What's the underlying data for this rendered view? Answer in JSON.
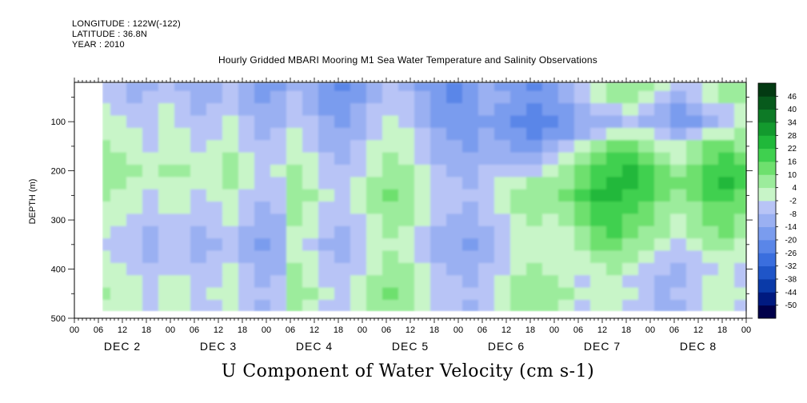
{
  "header": {
    "longitude": "LONGITUDE : 122W(-122)",
    "latitude": "LATITUDE : 36.8N",
    "year": "YEAR : 2010"
  },
  "plot_title": "Hourly Gridded MBARI Mooring M1 Sea Water Temperature and Salinity Observations",
  "bottom_title": "U Component of Water Velocity (cm s-1)",
  "chart_data": {
    "type": "heatmap",
    "title": "Hourly Gridded MBARI Mooring M1 Sea Water Temperature and Salinity Observations",
    "xlabel": "",
    "ylabel": "DEPTH (m)",
    "x_hour_ticks": [
      "00",
      "06",
      "12",
      "18",
      "00",
      "06",
      "12",
      "18",
      "00",
      "06",
      "12",
      "18",
      "00",
      "06",
      "12",
      "18",
      "00",
      "06",
      "12",
      "18",
      "00",
      "06",
      "12",
      "18",
      "00",
      "06",
      "12",
      "18",
      "00"
    ],
    "x_day_labels": [
      "DEC 2",
      "DEC 3",
      "DEC 4",
      "DEC 5",
      "DEC 6",
      "DEC 7",
      "DEC 8"
    ],
    "x_range_hours": [
      0,
      168
    ],
    "data_x_range_hours": [
      7,
      168
    ],
    "y_ticks": [
      100,
      200,
      300,
      400,
      500
    ],
    "y_range": [
      20,
      500
    ],
    "y_reversed": true,
    "data_y_range": [
      20,
      485
    ],
    "colorbar": {
      "levels": [
        -50,
        -44,
        -38,
        -32,
        -26,
        -20,
        -14,
        -8,
        -2,
        4,
        10,
        16,
        22,
        28,
        34,
        40,
        46
      ],
      "labels": [
        "46",
        "40",
        "34",
        "28",
        "22",
        "16",
        "10",
        "4",
        "-2",
        "-8",
        "-14",
        "-20",
        "-26",
        "-32",
        "-38",
        "-44",
        "-50"
      ],
      "colors": [
        "#00004a",
        "#001a80",
        "#0a3aa8",
        "#1f55c8",
        "#3a6ede",
        "#5a86e8",
        "#7a9cee",
        "#9ab0f2",
        "#b8c4f6",
        "#c8f5c8",
        "#9cec9c",
        "#6ee06e",
        "#3fd04f",
        "#20b83a",
        "#139a2e",
        "#0d7a26",
        "#075a1c",
        "#033a12"
      ],
      "placement": "right"
    },
    "field": {
      "time_hours": [
        7,
        11,
        15,
        19,
        23,
        27,
        31,
        35,
        39,
        43,
        47,
        51,
        55,
        59,
        63,
        67,
        71,
        75,
        79,
        83,
        87,
        91,
        95,
        99,
        103,
        107,
        111,
        115,
        119,
        123,
        127,
        131,
        135,
        139,
        143,
        147,
        151,
        155,
        159,
        163,
        167
      ],
      "depth_m": [
        25,
        50,
        75,
        100,
        125,
        150,
        175,
        200,
        225,
        250,
        275,
        300,
        325,
        350,
        375,
        400,
        425,
        450,
        475
      ],
      "u_cm_s": [
        [
          -5,
          -8,
          -12,
          -10,
          -6,
          -9,
          -14,
          -11,
          -8,
          -13,
          -18,
          -15,
          -10,
          -14,
          -20,
          -22,
          -18,
          -12,
          -8,
          -10,
          -16,
          -20,
          -24,
          -18,
          -14,
          -16,
          -20,
          -22,
          -18,
          -12,
          -6,
          2,
          6,
          8,
          4,
          -2,
          -6,
          -4,
          2,
          6,
          8
        ],
        [
          -4,
          -6,
          -10,
          -8,
          -4,
          -8,
          -12,
          -10,
          -6,
          -12,
          -16,
          -14,
          -8,
          -12,
          -18,
          -20,
          -16,
          -10,
          -6,
          -8,
          -14,
          -20,
          -22,
          -16,
          -12,
          -14,
          -18,
          -20,
          -16,
          -10,
          -8,
          -2,
          4,
          6,
          2,
          -4,
          -10,
          -8,
          -2,
          4,
          6
        ],
        [
          -2,
          -4,
          -6,
          -6,
          -2,
          -6,
          -10,
          -8,
          -4,
          -10,
          -14,
          -12,
          -6,
          -10,
          -16,
          -18,
          -14,
          -8,
          -4,
          -6,
          -12,
          -18,
          -20,
          -18,
          -14,
          -16,
          -20,
          -22,
          -20,
          -16,
          -12,
          -8,
          -4,
          -2,
          -6,
          -10,
          -16,
          -14,
          -8,
          -4,
          0
        ],
        [
          0,
          -2,
          -4,
          -4,
          0,
          -4,
          -8,
          -6,
          -2,
          -8,
          -12,
          -10,
          -4,
          -8,
          -14,
          -16,
          -12,
          -6,
          -2,
          -4,
          -10,
          -16,
          -18,
          -20,
          -16,
          -18,
          -22,
          -24,
          -22,
          -18,
          -14,
          -12,
          -10,
          -8,
          -10,
          -14,
          -18,
          -16,
          -10,
          -6,
          -2
        ],
        [
          2,
          0,
          -2,
          -6,
          -2,
          -2,
          -6,
          -4,
          0,
          -6,
          -10,
          -8,
          -2,
          -6,
          -12,
          -14,
          -10,
          -4,
          0,
          -2,
          -8,
          -14,
          -16,
          -18,
          -14,
          -16,
          -20,
          -22,
          -20,
          -16,
          -10,
          -4,
          0,
          2,
          -2,
          -6,
          -10,
          -8,
          -2,
          2,
          4
        ],
        [
          4,
          2,
          0,
          -4,
          0,
          0,
          -4,
          -2,
          2,
          -4,
          -8,
          -6,
          0,
          -4,
          -10,
          -12,
          -8,
          -2,
          2,
          0,
          -6,
          -12,
          -14,
          -16,
          -12,
          -14,
          -18,
          -16,
          -12,
          -6,
          0,
          6,
          10,
          12,
          8,
          2,
          -2,
          4,
          10,
          12,
          8
        ],
        [
          6,
          4,
          2,
          -2,
          2,
          2,
          -2,
          0,
          4,
          -2,
          -6,
          -4,
          2,
          -2,
          -8,
          -10,
          -6,
          0,
          4,
          2,
          -4,
          -10,
          -12,
          -14,
          -10,
          -10,
          -12,
          -10,
          -6,
          0,
          6,
          12,
          16,
          18,
          14,
          8,
          2,
          8,
          14,
          16,
          12
        ],
        [
          8,
          6,
          4,
          0,
          4,
          4,
          0,
          2,
          6,
          0,
          -4,
          -2,
          4,
          0,
          -6,
          -8,
          -4,
          2,
          6,
          4,
          -2,
          -8,
          -10,
          -12,
          -8,
          -6,
          -6,
          -4,
          0,
          4,
          10,
          16,
          20,
          22,
          18,
          12,
          6,
          12,
          18,
          20,
          16
        ],
        [
          6,
          4,
          2,
          -2,
          2,
          2,
          -2,
          0,
          4,
          -2,
          -6,
          -4,
          6,
          2,
          -4,
          -6,
          -2,
          4,
          8,
          6,
          0,
          -6,
          -8,
          -10,
          -6,
          -2,
          2,
          4,
          6,
          8,
          14,
          20,
          24,
          22,
          18,
          14,
          10,
          14,
          20,
          22,
          18
        ],
        [
          4,
          2,
          0,
          -4,
          0,
          0,
          -4,
          -2,
          2,
          -4,
          -8,
          -6,
          8,
          4,
          -2,
          -4,
          0,
          6,
          10,
          8,
          2,
          -4,
          -6,
          -8,
          -4,
          0,
          6,
          8,
          8,
          10,
          16,
          22,
          24,
          20,
          16,
          12,
          8,
          12,
          16,
          18,
          14
        ],
        [
          2,
          0,
          -2,
          -6,
          -2,
          -2,
          -6,
          -4,
          0,
          -6,
          -10,
          -8,
          6,
          2,
          -4,
          -6,
          -2,
          4,
          8,
          6,
          0,
          -6,
          -8,
          -10,
          -6,
          -2,
          4,
          6,
          4,
          6,
          12,
          18,
          20,
          16,
          12,
          8,
          4,
          8,
          12,
          14,
          10
        ],
        [
          0,
          -2,
          -4,
          -8,
          -4,
          -4,
          -8,
          -6,
          -2,
          -8,
          -12,
          -10,
          4,
          0,
          -6,
          -8,
          -4,
          2,
          6,
          4,
          -2,
          -8,
          -10,
          -12,
          -8,
          -4,
          2,
          4,
          2,
          4,
          10,
          16,
          18,
          14,
          10,
          6,
          2,
          6,
          10,
          12,
          8
        ],
        [
          -2,
          -4,
          -6,
          -10,
          -6,
          -6,
          -10,
          -8,
          -4,
          -10,
          -14,
          -12,
          2,
          -2,
          -8,
          -10,
          -6,
          0,
          4,
          2,
          -4,
          -10,
          -12,
          -14,
          -10,
          -6,
          0,
          2,
          0,
          2,
          8,
          14,
          16,
          12,
          8,
          4,
          0,
          4,
          8,
          10,
          6
        ],
        [
          -4,
          -6,
          -8,
          -12,
          -8,
          -8,
          -12,
          -10,
          -6,
          -12,
          -16,
          -14,
          0,
          -4,
          -10,
          -12,
          -8,
          -2,
          2,
          0,
          -6,
          -12,
          -14,
          -16,
          -12,
          -8,
          -2,
          0,
          -2,
          0,
          6,
          10,
          12,
          8,
          4,
          0,
          -4,
          0,
          4,
          6,
          2
        ],
        [
          -2,
          -4,
          -6,
          -10,
          -6,
          -6,
          -10,
          -8,
          -4,
          -10,
          -14,
          -12,
          2,
          -2,
          -8,
          -10,
          -6,
          0,
          4,
          2,
          -4,
          -10,
          -12,
          -14,
          -10,
          -6,
          0,
          2,
          0,
          -2,
          2,
          6,
          8,
          4,
          0,
          -4,
          -8,
          -4,
          0,
          2,
          -2
        ],
        [
          0,
          -2,
          -4,
          -8,
          -4,
          -4,
          -8,
          -6,
          -2,
          -8,
          -12,
          -10,
          4,
          0,
          -6,
          -8,
          -4,
          2,
          6,
          4,
          -2,
          -8,
          -10,
          -12,
          -8,
          -4,
          2,
          4,
          2,
          0,
          -2,
          2,
          4,
          0,
          -4,
          -8,
          -12,
          -8,
          -4,
          -2,
          -6
        ],
        [
          2,
          0,
          -2,
          -6,
          -2,
          -2,
          -6,
          -4,
          0,
          -6,
          -10,
          -8,
          6,
          2,
          -4,
          -6,
          -2,
          4,
          8,
          6,
          0,
          -6,
          -8,
          -10,
          -6,
          -2,
          4,
          6,
          4,
          2,
          -4,
          -2,
          0,
          -4,
          -8,
          -12,
          -10,
          -6,
          -2,
          0,
          -4
        ],
        [
          4,
          2,
          0,
          -4,
          0,
          0,
          -4,
          -2,
          2,
          -4,
          -8,
          -6,
          8,
          4,
          -2,
          -4,
          0,
          6,
          10,
          8,
          2,
          -4,
          -6,
          -8,
          -4,
          0,
          6,
          8,
          6,
          4,
          -2,
          0,
          2,
          -2,
          -6,
          -10,
          -8,
          -4,
          0,
          2,
          -2
        ],
        [
          2,
          0,
          -2,
          -6,
          -2,
          -2,
          -6,
          -4,
          0,
          -6,
          -10,
          -8,
          6,
          2,
          -4,
          -6,
          -2,
          4,
          8,
          6,
          0,
          -6,
          -8,
          -10,
          -6,
          -2,
          4,
          6,
          4,
          2,
          -4,
          -2,
          0,
          -4,
          -8,
          -12,
          -10,
          -6,
          -2,
          0,
          -4
        ]
      ]
    }
  }
}
